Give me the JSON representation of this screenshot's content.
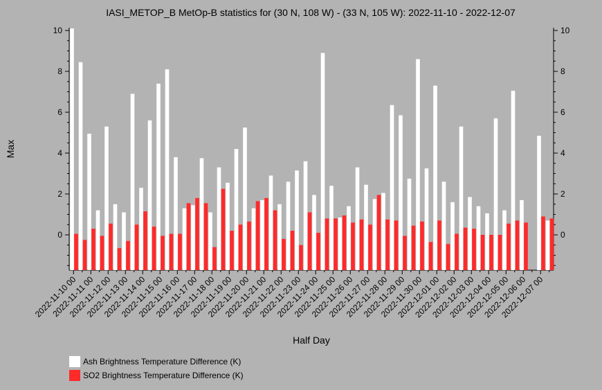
{
  "chart_data": {
    "type": "bar",
    "title": "IASI_METOP_B MetOp-B statistics for (30 N, 108 W) - (33 N, 105 W): 2022-11-10 - 2022-12-07",
    "xlabel": "Half Day",
    "ylabel": "Max",
    "ylim": [
      -1.7,
      10
    ],
    "yticks": [
      0,
      2,
      4,
      6,
      8,
      10
    ],
    "grid": false,
    "legend_position": "bottom-left",
    "xtick_labels": [
      "2022-11-10 00",
      "2022-11-11 00",
      "2022-11-12 00",
      "2022-11-13 00",
      "2022-11-14 00",
      "2022-11-15 00",
      "2022-11-16 00",
      "2022-11-17 00",
      "2022-11-18 00",
      "2022-11-19 00",
      "2022-11-20 00",
      "2022-11-21 00",
      "2022-11-22 00",
      "2022-11-23 00",
      "2022-11-24 00",
      "2022-11-25 00",
      "2022-11-26 00",
      "2022-11-27 00",
      "2022-11-28 00",
      "2022-11-29 00",
      "2022-11-30 00",
      "2022-12-01 00",
      "2022-12-02 00",
      "2022-12-03 00",
      "2022-12-04 00",
      "2022-12-05 00",
      "2022-12-06 00",
      "2022-12-07 00"
    ],
    "series": [
      {
        "name": "Ash Brightness Temperature Difference (K)",
        "color": "#ffffff",
        "values": [
          10.1,
          8.45,
          4.95,
          1.2,
          5.3,
          1.5,
          1.1,
          6.9,
          2.3,
          5.6,
          7.4,
          8.1,
          3.8,
          1.3,
          1.45,
          3.75,
          1.1,
          3.3,
          2.55,
          4.2,
          5.25,
          1.3,
          1.7,
          2.9,
          1.5,
          2.6,
          3.15,
          3.6,
          1.95,
          8.9,
          2.4,
          0.85,
          1.4,
          3.3,
          2.45,
          1.75,
          2.05,
          6.35,
          5.85,
          2.75,
          8.6,
          3.25,
          7.3,
          2.6,
          1.6,
          5.3,
          1.85,
          1.4,
          1.05,
          5.7,
          1.2,
          7.05,
          1.7,
          null,
          4.85,
          0.7
        ]
      },
      {
        "name": "SO2 Brightness Temperature Difference (K)",
        "color": "#ff2a2a",
        "values": [
          0.05,
          -0.25,
          0.3,
          -0.05,
          0.55,
          -0.65,
          -0.3,
          0.5,
          1.15,
          0.4,
          -0.05,
          0.05,
          0.05,
          1.55,
          1.8,
          1.55,
          -0.6,
          2.25,
          0.2,
          0.5,
          0.65,
          1.65,
          1.8,
          1.2,
          -0.2,
          0.2,
          -0.5,
          1.1,
          0.1,
          0.8,
          0.8,
          0.95,
          0.6,
          0.75,
          0.5,
          1.95,
          0.75,
          0.7,
          -0.05,
          0.45,
          0.65,
          -0.35,
          0.7,
          -0.45,
          0.05,
          0.35,
          0.3,
          0.0,
          0.0,
          0.0,
          0.55,
          0.7,
          0.6,
          null,
          0.9,
          0.8
        ]
      }
    ]
  }
}
